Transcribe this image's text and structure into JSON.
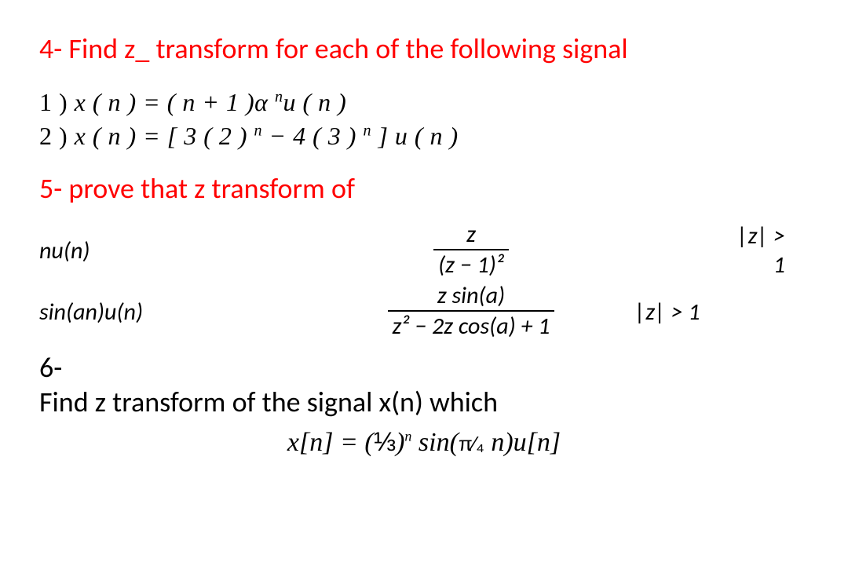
{
  "colors": {
    "heading": "#ff0000",
    "text": "#000000",
    "background": "#ffffff"
  },
  "typography": {
    "heading_font": "Calibri",
    "body_font": "Times New Roman",
    "heading_size_pt": 27,
    "body_size_pt": 24,
    "table_size_pt": 22
  },
  "q4": {
    "heading": "4- Find z_ transform for each of the following signal",
    "eq1_lead": "1 ) ",
    "eq1_lhs": "x ( n )  =  ( n + 1 )α ",
    "eq1_exp": "n",
    "eq1_tail": "u ( n )",
    "eq2_lead": "2 ) ",
    "eq2_lhs": "x ( n )  =  [ 3 ( 2 ) ",
    "eq2_exp1": "n",
    "eq2_mid": "  −  4 ( 3 ) ",
    "eq2_exp2": "n",
    "eq2_tail": " ] u ( n )"
  },
  "q5": {
    "heading": "5- prove that z transform of",
    "rows": [
      {
        "left": "nu(n)",
        "num": "z",
        "den": "(z − 1)²",
        "roc2": "|z| > 1"
      },
      {
        "left": "sin(an)u(n)",
        "num": "z sin(a)",
        "den": "z² − 2z cos(a) + 1",
        "roc1": "|z| > 1"
      }
    ]
  },
  "q6": {
    "title": "6-",
    "body": "Find z transform of the signal x(n) which",
    "eq_lhs": "x[n] = (",
    "eq_frac1": "⅓",
    "eq_mid1": ")",
    "eq_exp": "n",
    "eq_mid2": " sin(",
    "eq_frac2": "π⁄₄",
    "eq_tail": " n)u[n]"
  }
}
